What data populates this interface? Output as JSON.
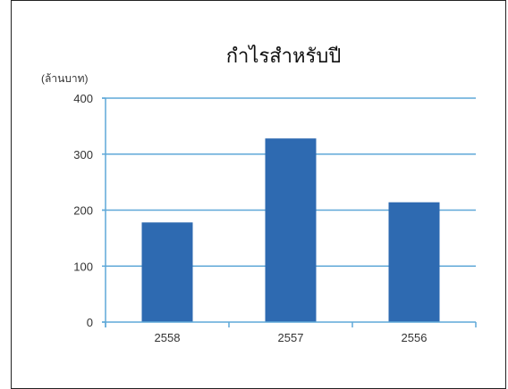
{
  "chart_data": {
    "type": "bar",
    "title": "กำไรสำหรับปี",
    "ylabel": "(ล้านบาท)",
    "xlabel": "",
    "categories": [
      "2558",
      "2557",
      "2556"
    ],
    "values": [
      178,
      328,
      214
    ],
    "ylim": [
      0,
      400
    ],
    "yticks": [
      0,
      100,
      200,
      300,
      400
    ],
    "grid": true,
    "bar_color": "#2e6ab1",
    "grid_color": "#5fa8d8"
  }
}
